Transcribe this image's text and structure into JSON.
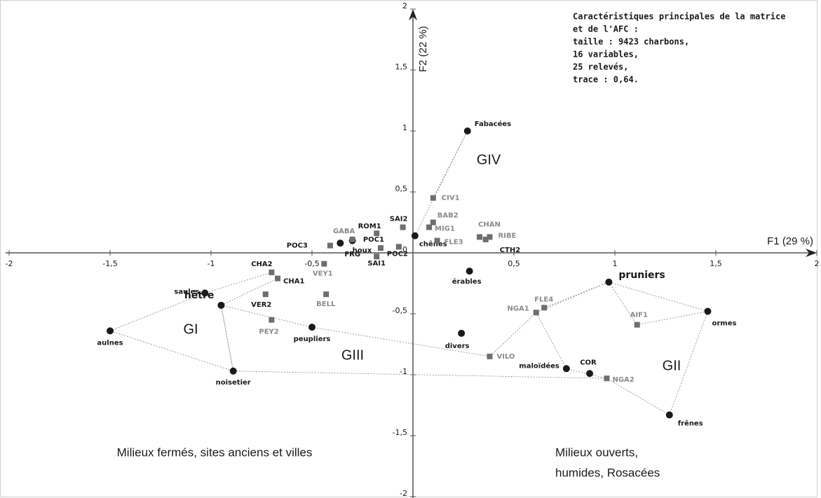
{
  "chart_data": {
    "type": "scatter",
    "x_label": "F1 (29 %)",
    "y_label": "F2 (22 %)",
    "xlim": [
      -2,
      2
    ],
    "ylim": [
      -2,
      2
    ],
    "xticks": [
      {
        "value": -2,
        "label": "-2"
      },
      {
        "value": -1.5,
        "label": "-1,5"
      },
      {
        "value": -1,
        "label": "-1"
      },
      {
        "value": -0.5,
        "label": "-0,5"
      },
      {
        "value": 0.5,
        "label": "0,5"
      },
      {
        "value": 1,
        "label": "1"
      },
      {
        "value": 1.5,
        "label": "1,5"
      },
      {
        "value": 2,
        "label": "2"
      }
    ],
    "yticks": [
      {
        "value": -2,
        "label": "-2"
      },
      {
        "value": -1.5,
        "label": "-1,5"
      },
      {
        "value": -1,
        "label": "-1"
      },
      {
        "value": -0.5,
        "label": "-0,5"
      },
      {
        "value": 0,
        "label": "0"
      },
      {
        "value": 0.5,
        "label": "0,5"
      },
      {
        "value": 1,
        "label": "1"
      },
      {
        "value": 1.5,
        "label": "1,5"
      },
      {
        "value": 2,
        "label": "2"
      }
    ],
    "series": [
      {
        "marker": "circle",
        "color": "#1a1a1a",
        "labels": [
          "Fabacées",
          "chênes",
          "houx",
          "FRG",
          "érables",
          "divers",
          "peupliers",
          "hêtre",
          "saules",
          "aulnes",
          "noisetier",
          "pruniers",
          "ormes",
          "frênes",
          "maloïdées",
          "COR"
        ],
        "x": [
          0.27,
          0.01,
          -0.3,
          -0.36,
          0.28,
          0.24,
          -0.5,
          -0.95,
          -1.03,
          -1.5,
          -0.89,
          0.97,
          1.46,
          1.27,
          0.76,
          0.875
        ],
        "values": [
          1.0,
          0.14,
          0.1,
          0.08,
          -0.15,
          -0.66,
          -0.61,
          -0.43,
          -0.33,
          -0.64,
          -0.97,
          -0.24,
          -0.48,
          -1.33,
          -0.95,
          -0.99
        ]
      },
      {
        "marker": "square",
        "color": "#6e6e6e",
        "labels": [
          "CIV1",
          "SAI2",
          "BAB2",
          "MIG1",
          "ROM1",
          "GABA",
          "POC1",
          "POC3",
          "POC2",
          "SAI1",
          "FLE3",
          "CHAN",
          "RIBE",
          "CTH2",
          "VEY1",
          "CHA2",
          "CHA1",
          "VER2",
          "BELL",
          "PEY2",
          "VILO",
          "NGA1",
          "FLE4",
          "AIF1",
          "NGA2"
        ],
        "x": [
          0.1,
          -0.05,
          0.1,
          0.08,
          -0.18,
          -0.3,
          -0.16,
          -0.41,
          -0.07,
          -0.18,
          0.12,
          0.33,
          0.38,
          0.36,
          -0.44,
          -0.7,
          -0.67,
          -0.73,
          -0.43,
          -0.7,
          0.38,
          0.61,
          0.65,
          1.11,
          0.96
        ],
        "values": [
          0.45,
          0.21,
          0.25,
          0.21,
          0.16,
          0.11,
          0.04,
          0.06,
          0.05,
          -0.03,
          0.1,
          0.13,
          0.13,
          0.11,
          -0.09,
          -0.16,
          -0.21,
          -0.34,
          -0.34,
          -0.55,
          -0.85,
          -0.49,
          -0.45,
          -0.59,
          -1.03
        ]
      }
    ],
    "groups": [
      "GI",
      "GII",
      "GIII",
      "GIV"
    ],
    "info_box": [
      "Caractéristiques principales de la matrice",
      "et de l'AFC :",
      "taille :  9423 charbons,",
      "16 variables,",
      "25 relevés,",
      "trace : 0,64."
    ],
    "zones": [
      [
        "Milieux fermés, sites anciens et villes"
      ],
      [
        "Milieux ouverts,",
        "humides, Rosacées"
      ]
    ]
  }
}
